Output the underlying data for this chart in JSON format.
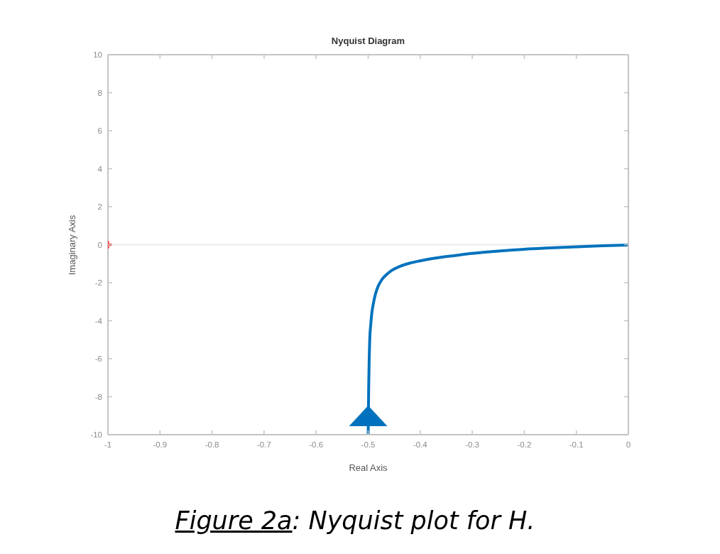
{
  "chart_data": {
    "type": "line",
    "title": "Nyquist Diagram",
    "xlabel": "Real Axis",
    "ylabel": "Imaginary Axis",
    "annotations": [
      "Figure 2a: Nyquist plot for H."
    ],
    "series": [
      {
        "type": "line",
        "color": "#0072bd",
        "x": [
          -0.5,
          -0.499,
          -0.498,
          -0.497,
          -0.495,
          -0.493,
          -0.49,
          -0.486,
          -0.481,
          -0.474,
          -0.465,
          -0.455,
          -0.44,
          -0.42,
          -0.4,
          -0.37,
          -0.33,
          -0.3,
          -0.25,
          -0.2,
          -0.15,
          -0.1,
          -0.05,
          0
        ],
        "values": [
          -10,
          -7.5,
          -6,
          -5,
          -4.2,
          -3.6,
          -3.1,
          -2.6,
          -2.2,
          -1.85,
          -1.58,
          -1.36,
          -1.15,
          -0.97,
          -0.85,
          -0.7,
          -0.56,
          -0.46,
          -0.34,
          -0.24,
          -0.17,
          -0.11,
          -0.06,
          -0.02
        ]
      },
      {
        "type": "scatter",
        "color": "#ff4d4d",
        "marker": "cross",
        "x": [
          -1
        ],
        "values": [
          0
        ]
      }
    ],
    "xlim": [
      -1,
      0
    ],
    "ylim": [
      -10,
      10
    ],
    "xticks": [
      -1,
      -0.9,
      -0.8,
      -0.7,
      -0.6,
      -0.5,
      -0.4,
      -0.3,
      -0.2,
      -0.1,
      0
    ],
    "yticks": [
      -10,
      -8,
      -6,
      -4,
      -2,
      0,
      2,
      4,
      6,
      8,
      10
    ],
    "ref_lines": [
      {
        "axis": "y",
        "value": 0,
        "color": "#ececec"
      }
    ]
  }
}
